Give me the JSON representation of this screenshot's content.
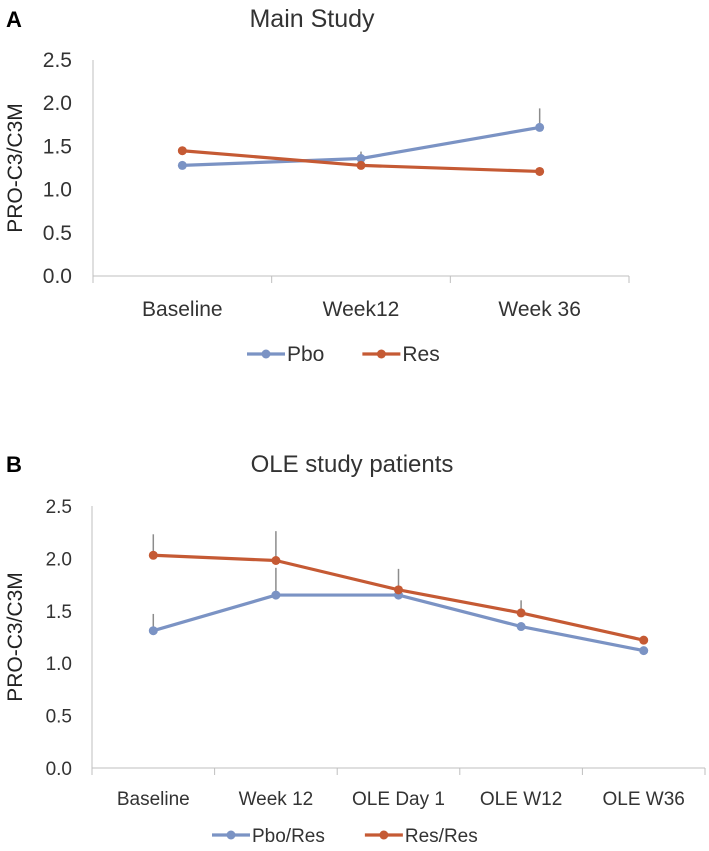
{
  "chart_data": [
    {
      "panel_label": "A",
      "type": "line",
      "title": "Main Study",
      "ylabel": "PRO-C3/C3M",
      "xlabel": "",
      "ylim": [
        0,
        2.5
      ],
      "yticks": [
        "0.0",
        "0.5",
        "1.0",
        "1.5",
        "2.0",
        "2.5"
      ],
      "categories": [
        "Baseline",
        "Week12",
        "Week 36"
      ],
      "legend_position": "bottom",
      "series": [
        {
          "name": "Pbo",
          "color": "#7b93c4",
          "values": [
            1.28,
            1.36,
            1.72
          ],
          "error_up": [
            0.0,
            0.08,
            0.22
          ]
        },
        {
          "name": "Res",
          "color": "#c55a34",
          "values": [
            1.45,
            1.28,
            1.21
          ],
          "error_up": [
            0.0,
            0.0,
            0.0
          ]
        }
      ]
    },
    {
      "panel_label": "B",
      "type": "line",
      "title": "OLE study patients",
      "ylabel": "PRO-C3/C3M",
      "xlabel": "",
      "ylim": [
        0,
        2.5
      ],
      "yticks": [
        "0.0",
        "0.5",
        "1.0",
        "1.5",
        "2.0",
        "2.5"
      ],
      "categories": [
        "Baseline",
        "Week 12",
        "OLE Day 1",
        "OLE W12",
        "OLE W36"
      ],
      "legend_position": "bottom",
      "series": [
        {
          "name": "Pbo/Res",
          "color": "#7b93c4",
          "values": [
            1.31,
            1.65,
            1.65,
            1.35,
            1.12
          ],
          "error_up": [
            0.16,
            0.26,
            0.0,
            0.0,
            0.0
          ]
        },
        {
          "name": "Res/Res",
          "color": "#c55a34",
          "values": [
            2.03,
            1.98,
            1.7,
            1.48,
            1.22
          ],
          "error_up": [
            0.2,
            0.28,
            0.2,
            0.12,
            0.0
          ]
        }
      ]
    }
  ]
}
